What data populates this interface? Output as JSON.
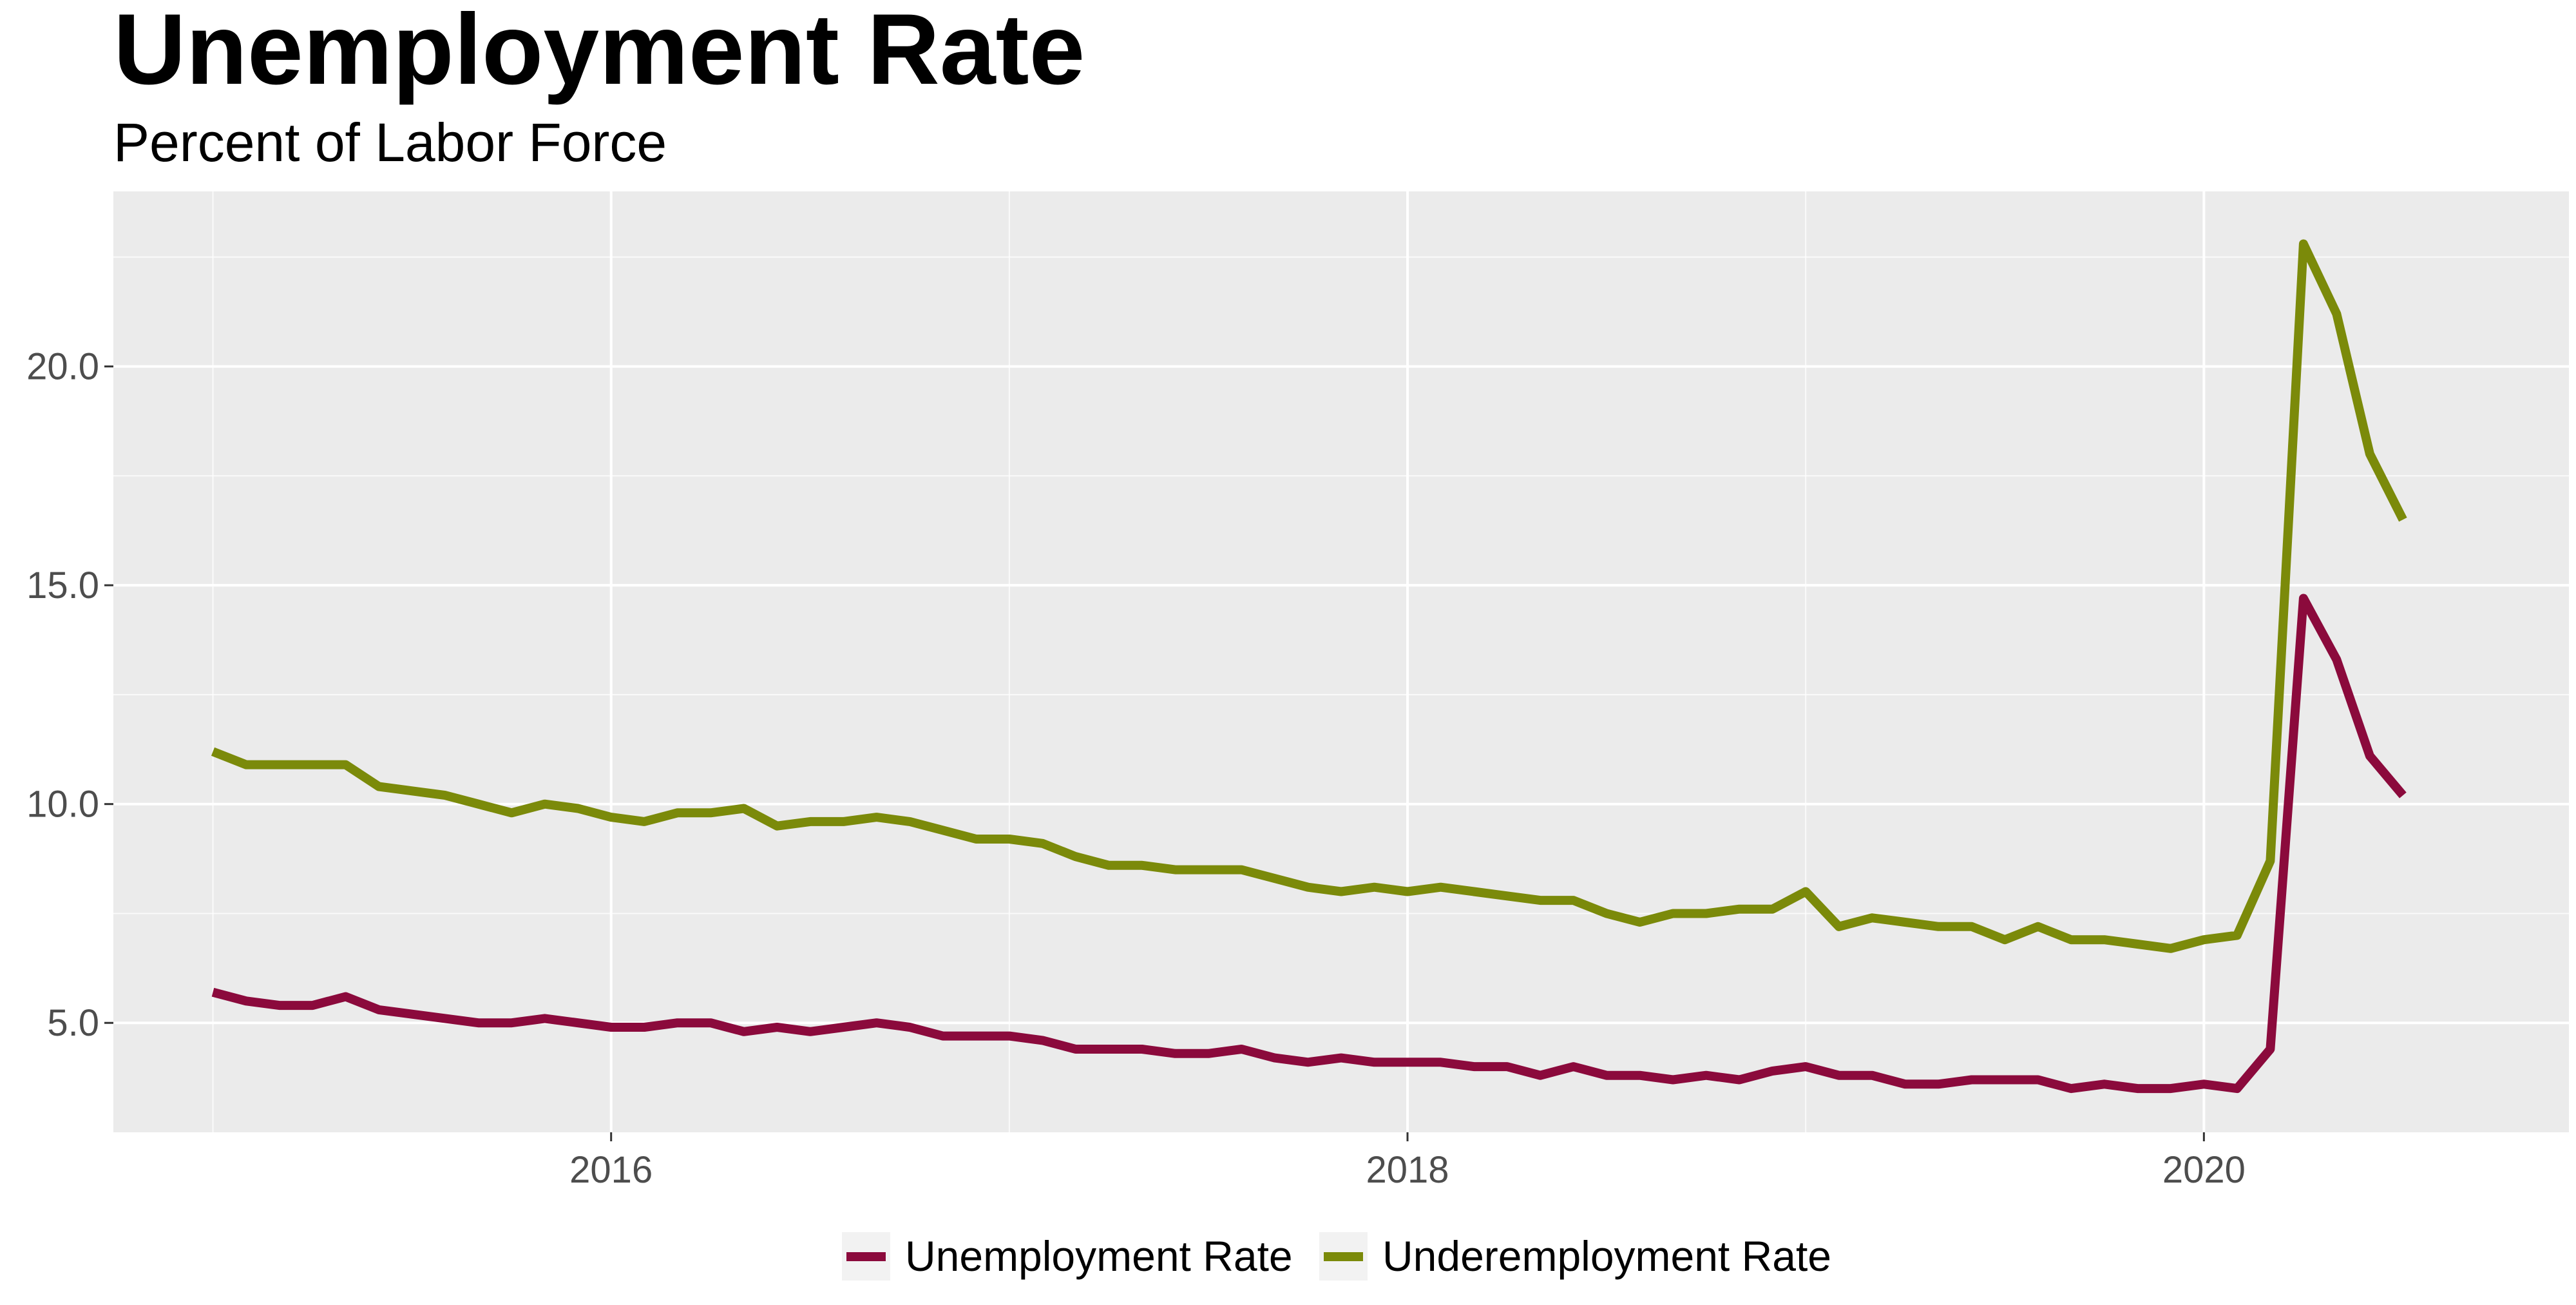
{
  "chart_data": {
    "type": "line",
    "title": "Unemployment Rate",
    "subtitle": "Percent of Labor Force",
    "xlabel": "",
    "ylabel": "",
    "x_start": "2015-01",
    "x_tick_labels": [
      "2016",
      "2018",
      "2020"
    ],
    "y_tick_labels": [
      "5.0",
      "10.0",
      "15.0",
      "20.0"
    ],
    "xlim": [
      "2014-10",
      "2020-12"
    ],
    "ylim": [
      2.5,
      24.0
    ],
    "grid": true,
    "legend_position": "bottom",
    "series": [
      {
        "name": "Unemployment Rate",
        "color": "#8b0a3c",
        "values": [
          5.7,
          5.5,
          5.4,
          5.4,
          5.6,
          5.3,
          5.2,
          5.1,
          5.0,
          5.0,
          5.1,
          5.0,
          4.9,
          4.9,
          5.0,
          5.0,
          4.8,
          4.9,
          4.8,
          4.9,
          5.0,
          4.9,
          4.7,
          4.7,
          4.7,
          4.6,
          4.4,
          4.4,
          4.4,
          4.3,
          4.3,
          4.4,
          4.2,
          4.1,
          4.2,
          4.1,
          4.1,
          4.1,
          4.0,
          4.0,
          3.8,
          4.0,
          3.8,
          3.8,
          3.7,
          3.8,
          3.7,
          3.9,
          4.0,
          3.8,
          3.8,
          3.6,
          3.6,
          3.7,
          3.7,
          3.7,
          3.5,
          3.6,
          3.5,
          3.5,
          3.6,
          3.5,
          4.4,
          14.7,
          13.3,
          11.1,
          10.2
        ]
      },
      {
        "name": "Underemployment Rate",
        "color": "#7b8a0a",
        "values": [
          11.2,
          10.9,
          10.9,
          10.9,
          10.9,
          10.4,
          10.3,
          10.2,
          10.0,
          9.8,
          10.0,
          9.9,
          9.7,
          9.6,
          9.8,
          9.8,
          9.9,
          9.5,
          9.6,
          9.6,
          9.7,
          9.6,
          9.4,
          9.2,
          9.2,
          9.1,
          8.8,
          8.6,
          8.6,
          8.5,
          8.5,
          8.5,
          8.3,
          8.1,
          8.0,
          8.1,
          8.0,
          8.1,
          8.0,
          7.9,
          7.8,
          7.8,
          7.5,
          7.3,
          7.5,
          7.5,
          7.6,
          7.6,
          8.0,
          7.2,
          7.4,
          7.3,
          7.2,
          7.2,
          6.9,
          7.2,
          6.9,
          6.9,
          6.8,
          6.7,
          6.9,
          7.0,
          8.7,
          22.8,
          21.2,
          18.0,
          16.5
        ]
      }
    ]
  }
}
